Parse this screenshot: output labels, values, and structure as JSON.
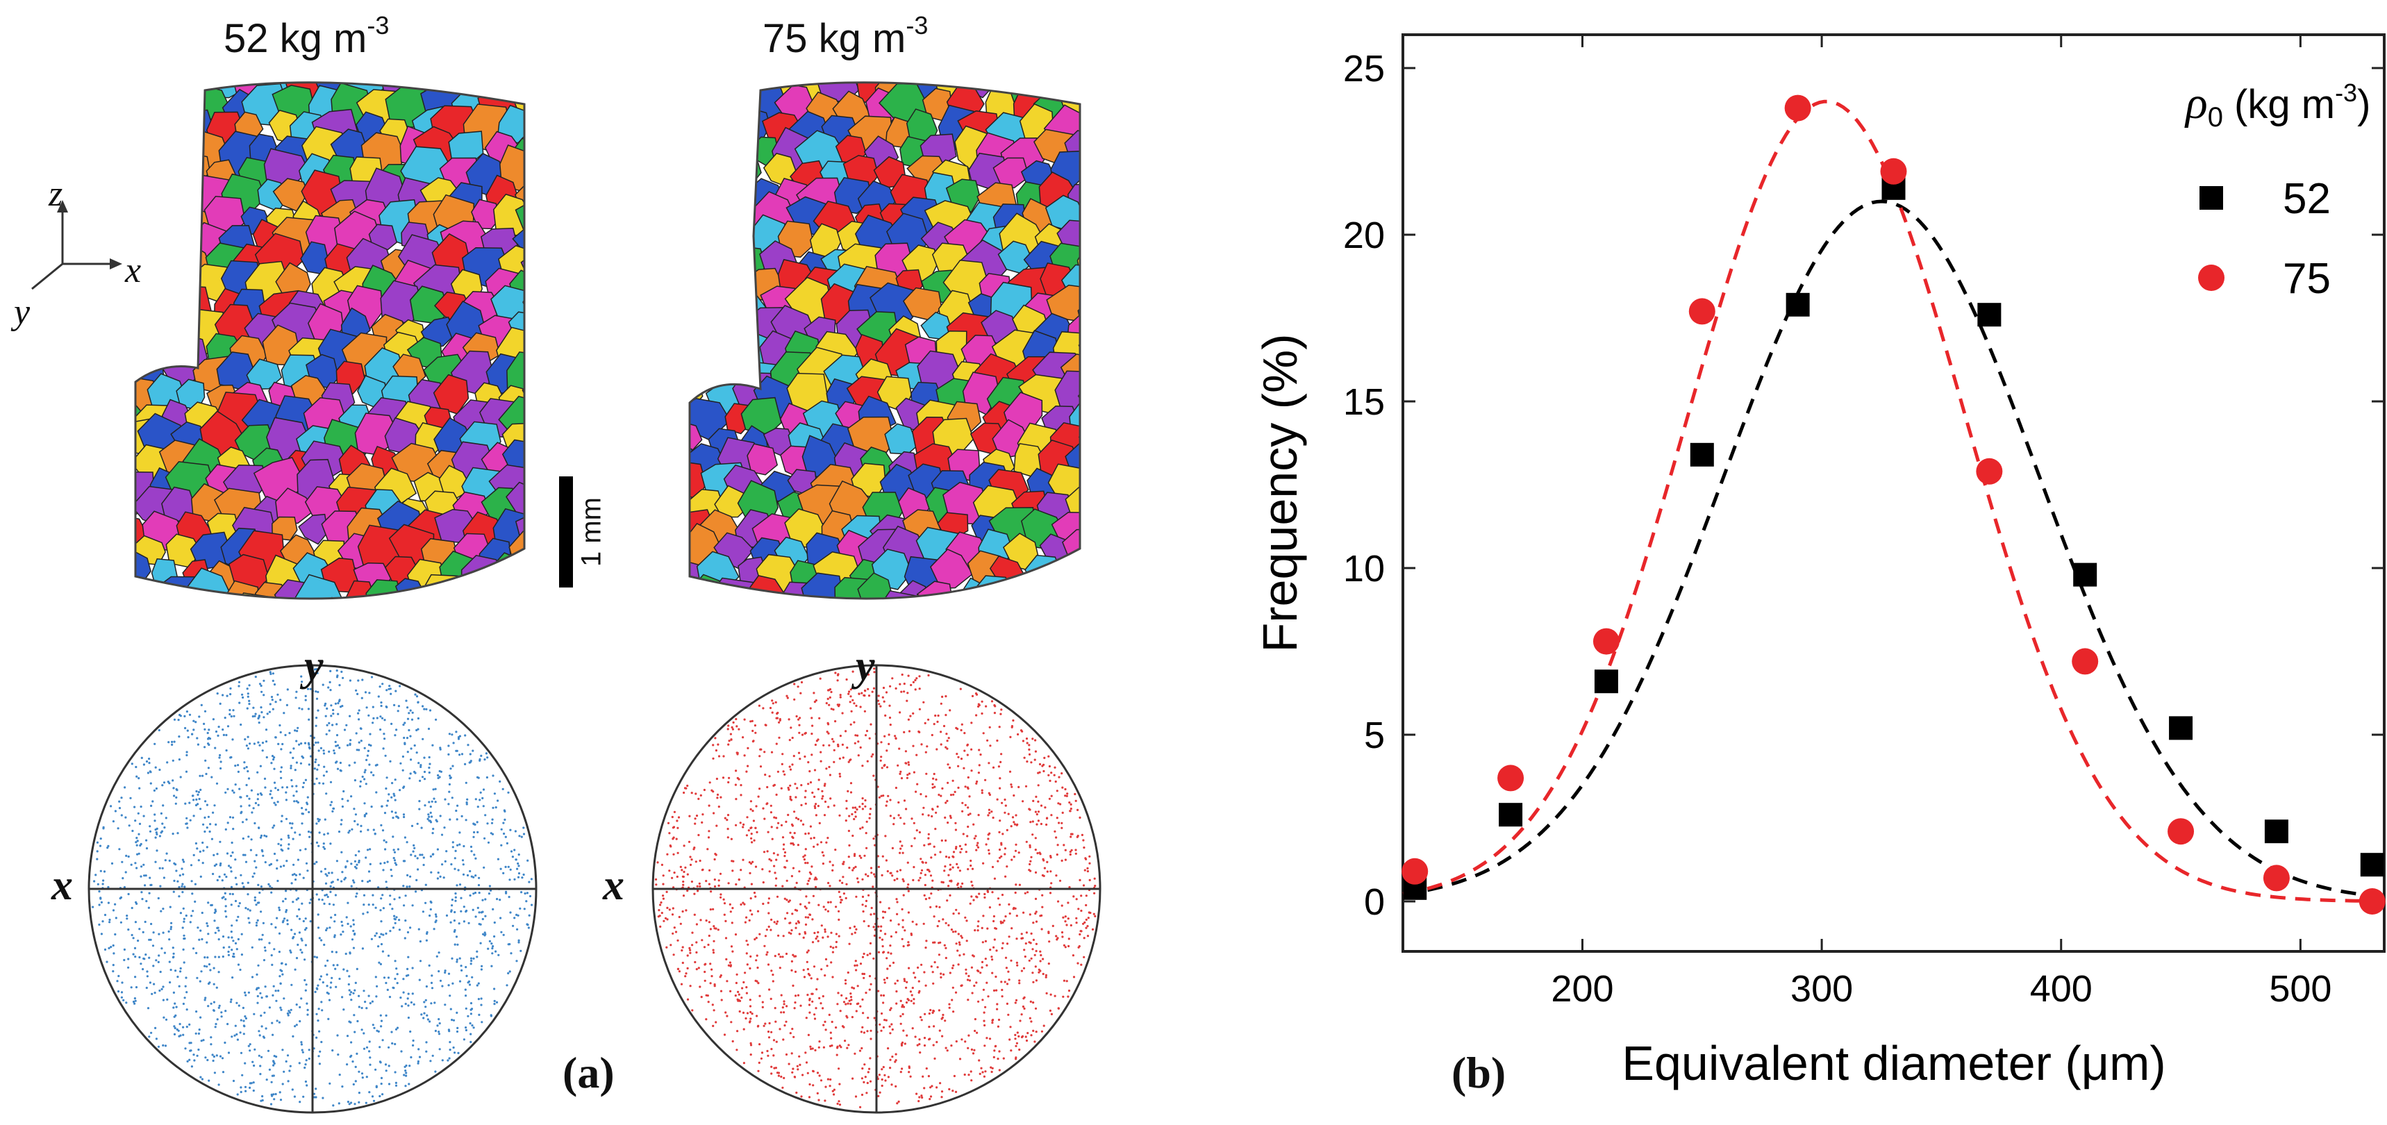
{
  "panel_a": {
    "label": "(a)",
    "samples": [
      {
        "density": "52",
        "unit": "kg m",
        "exp": "-3",
        "dot_color": "#3f86c8"
      },
      {
        "density": "75",
        "unit": "kg m",
        "exp": "-3",
        "dot_color": "#e03a3a"
      }
    ],
    "axes": {
      "z": "z",
      "x": "x",
      "y": "y"
    },
    "scale_bar": "1 mm",
    "pole_labels": {
      "x": "x",
      "y": "y"
    },
    "grain_palette": [
      "#e8262a",
      "#2a54c8",
      "#f2d52b",
      "#2cb24a",
      "#e23cb8",
      "#45bfe3",
      "#ee8a2c",
      "#9b3fc8"
    ]
  },
  "panel_b": {
    "label": "(b)"
  },
  "chart_data": {
    "type": "scatter",
    "title": "",
    "xlabel": "Equivalent diameter (μm)",
    "ylabel": "Frequency (%)",
    "xlim": [
      125,
      535
    ],
    "ylim": [
      -1.5,
      26
    ],
    "xticks": [
      200,
      300,
      400,
      500
    ],
    "yticks": [
      0,
      5,
      10,
      15,
      20,
      25
    ],
    "grid": false,
    "legend": {
      "title_symbol": "ρ",
      "title_sub": "0",
      "title_unit": "(kg m",
      "title_exp": "-3",
      "title_close": ")",
      "placement": "top-right"
    },
    "series": [
      {
        "name": "52",
        "marker": "square",
        "color": "#000000",
        "x": [
          130,
          170,
          210,
          250,
          290,
          330,
          370,
          410,
          450,
          490,
          530
        ],
        "y": [
          0.4,
          2.6,
          6.6,
          13.4,
          17.9,
          21.4,
          17.6,
          9.8,
          5.2,
          2.1,
          1.1
        ],
        "fit": {
          "type": "gaussian",
          "amplitude": 21.0,
          "center": 325,
          "sigma": 66,
          "style": "dashed"
        }
      },
      {
        "name": "75",
        "marker": "circle",
        "color": "#e8262a",
        "x": [
          130,
          170,
          210,
          250,
          290,
          330,
          370,
          410,
          450,
          490,
          530
        ],
        "y": [
          0.9,
          3.7,
          7.8,
          17.7,
          23.8,
          21.9,
          12.9,
          7.2,
          2.1,
          0.7,
          0.0
        ],
        "fit": {
          "type": "gaussian",
          "amplitude": 24.0,
          "center": 302,
          "sigma": 58,
          "style": "dashed"
        }
      }
    ]
  }
}
